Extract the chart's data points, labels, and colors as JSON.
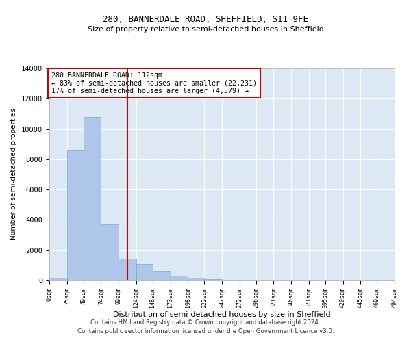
{
  "title1": "280, BANNERDALE ROAD, SHEFFIELD, S11 9FE",
  "title2": "Size of property relative to semi-detached houses in Sheffield",
  "xlabel": "Distribution of semi-detached houses by size in Sheffield",
  "ylabel": "Number of semi-detached properties",
  "footer1": "Contains HM Land Registry data © Crown copyright and database right 2024.",
  "footer2": "Contains public sector information licensed under the Open Government Licence v3.0.",
  "annotation_title": "280 BANNERDALE ROAD: 112sqm",
  "annotation_line1": "← 83% of semi-detached houses are smaller (22,231)",
  "annotation_line2": "17% of semi-detached houses are larger (4,579) →",
  "property_size": 112,
  "bin_edges": [
    0,
    25,
    49,
    74,
    99,
    124,
    148,
    173,
    198,
    222,
    247,
    272,
    296,
    321,
    346,
    371,
    395,
    420,
    445,
    469,
    494
  ],
  "bar_heights": [
    200,
    8600,
    10800,
    3700,
    1450,
    1100,
    650,
    330,
    160,
    100,
    0,
    0,
    0,
    0,
    0,
    0,
    0,
    0,
    0,
    0
  ],
  "bar_color": "#aec6e8",
  "bar_edgecolor": "#6aaed6",
  "vline_color": "#cc0000",
  "vline_x": 112,
  "ylim": [
    0,
    14000
  ],
  "yticks": [
    0,
    2000,
    4000,
    6000,
    8000,
    10000,
    12000,
    14000
  ],
  "bg_color": "#dde8f5",
  "annotation_box_color": "#cc0000",
  "grid_color": "#ffffff",
  "tick_labels": [
    "0sqm",
    "25sqm",
    "49sqm",
    "74sqm",
    "99sqm",
    "124sqm",
    "148sqm",
    "173sqm",
    "198sqm",
    "222sqm",
    "247sqm",
    "272sqm",
    "296sqm",
    "321sqm",
    "346sqm",
    "371sqm",
    "395sqm",
    "420sqm",
    "445sqm",
    "469sqm",
    "494sqm"
  ]
}
